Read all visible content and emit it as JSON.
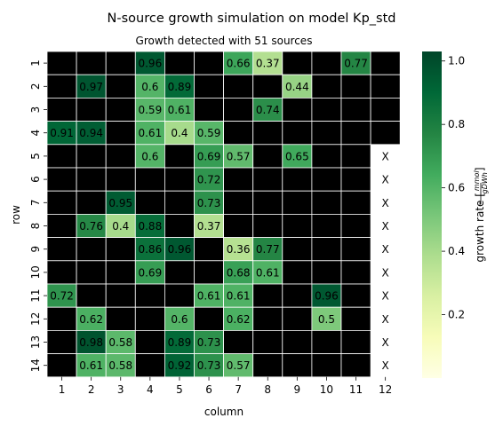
{
  "chart_data": {
    "type": "heatmap",
    "title": "N-source growth simulation on model Kp_std",
    "subtitle": "Growth detected with 51 sources",
    "xlabel": "column",
    "ylabel": "row",
    "x_categories": [
      "1",
      "2",
      "3",
      "4",
      "5",
      "6",
      "7",
      "8",
      "9",
      "10",
      "11",
      "12"
    ],
    "y_categories": [
      "1",
      "2",
      "3",
      "4",
      "5",
      "6",
      "7",
      "8",
      "9",
      "10",
      "11",
      "12",
      "13",
      "14"
    ],
    "no_growth_color": "#000000",
    "missing_marker": "X",
    "missing_cells": [
      [
        5,
        12
      ],
      [
        6,
        12
      ],
      [
        7,
        12
      ],
      [
        8,
        12
      ],
      [
        9,
        12
      ],
      [
        10,
        12
      ],
      [
        11,
        12
      ],
      [
        12,
        12
      ],
      [
        13,
        12
      ],
      [
        14,
        12
      ]
    ],
    "values": [
      {
        "row": 1,
        "col": 4,
        "value": 0.96
      },
      {
        "row": 1,
        "col": 7,
        "value": 0.66
      },
      {
        "row": 1,
        "col": 8,
        "value": 0.37
      },
      {
        "row": 1,
        "col": 11,
        "value": 0.77
      },
      {
        "row": 2,
        "col": 2,
        "value": 0.97
      },
      {
        "row": 2,
        "col": 4,
        "value": 0.6
      },
      {
        "row": 2,
        "col": 5,
        "value": 0.89
      },
      {
        "row": 2,
        "col": 9,
        "value": 0.44
      },
      {
        "row": 3,
        "col": 4,
        "value": 0.59
      },
      {
        "row": 3,
        "col": 5,
        "value": 0.61
      },
      {
        "row": 3,
        "col": 8,
        "value": 0.74
      },
      {
        "row": 4,
        "col": 1,
        "value": 0.91
      },
      {
        "row": 4,
        "col": 2,
        "value": 0.94
      },
      {
        "row": 4,
        "col": 4,
        "value": 0.61
      },
      {
        "row": 4,
        "col": 5,
        "value": 0.4
      },
      {
        "row": 4,
        "col": 6,
        "value": 0.59
      },
      {
        "row": 5,
        "col": 4,
        "value": 0.6
      },
      {
        "row": 5,
        "col": 6,
        "value": 0.69
      },
      {
        "row": 5,
        "col": 7,
        "value": 0.57
      },
      {
        "row": 5,
        "col": 9,
        "value": 0.65
      },
      {
        "row": 6,
        "col": 6,
        "value": 0.72
      },
      {
        "row": 7,
        "col": 3,
        "value": 0.95
      },
      {
        "row": 7,
        "col": 6,
        "value": 0.73
      },
      {
        "row": 8,
        "col": 2,
        "value": 0.76
      },
      {
        "row": 8,
        "col": 3,
        "value": 0.4
      },
      {
        "row": 8,
        "col": 4,
        "value": 0.88
      },
      {
        "row": 8,
        "col": 6,
        "value": 0.37
      },
      {
        "row": 9,
        "col": 4,
        "value": 0.86
      },
      {
        "row": 9,
        "col": 5,
        "value": 0.96
      },
      {
        "row": 9,
        "col": 7,
        "value": 0.36
      },
      {
        "row": 9,
        "col": 8,
        "value": 0.77
      },
      {
        "row": 10,
        "col": 4,
        "value": 0.69
      },
      {
        "row": 10,
        "col": 7,
        "value": 0.68
      },
      {
        "row": 10,
        "col": 8,
        "value": 0.61
      },
      {
        "row": 11,
        "col": 1,
        "value": 0.72
      },
      {
        "row": 11,
        "col": 6,
        "value": 0.61
      },
      {
        "row": 11,
        "col": 7,
        "value": 0.61
      },
      {
        "row": 11,
        "col": 10,
        "value": 0.96
      },
      {
        "row": 12,
        "col": 2,
        "value": 0.62
      },
      {
        "row": 12,
        "col": 5,
        "value": 0.6
      },
      {
        "row": 12,
        "col": 7,
        "value": 0.62
      },
      {
        "row": 12,
        "col": 10,
        "value": 0.5
      },
      {
        "row": 13,
        "col": 2,
        "value": 0.98
      },
      {
        "row": 13,
        "col": 3,
        "value": 0.58
      },
      {
        "row": 13,
        "col": 5,
        "value": 0.89
      },
      {
        "row": 13,
        "col": 6,
        "value": 0.73
      },
      {
        "row": 14,
        "col": 2,
        "value": 0.61
      },
      {
        "row": 14,
        "col": 3,
        "value": 0.58
      },
      {
        "row": 14,
        "col": 5,
        "value": 0.92
      },
      {
        "row": 14,
        "col": 6,
        "value": 0.73
      },
      {
        "row": 14,
        "col": 7,
        "value": 0.57
      }
    ],
    "colorbar": {
      "label_prefix": "growth rate [",
      "label_fraction_num": "mmol",
      "label_fraction_den": "gDWh",
      "label_suffix": "]",
      "range": [
        0.0,
        1.03
      ],
      "ticks": [
        "0.2",
        "0.4",
        "0.6",
        "0.8",
        "1.0"
      ],
      "colormap": "YlGn",
      "colors": [
        "#ffffe5",
        "#f7fcb9",
        "#d9f0a3",
        "#addd8e",
        "#78c679",
        "#41ab5d",
        "#238443",
        "#006837",
        "#004529"
      ]
    }
  }
}
